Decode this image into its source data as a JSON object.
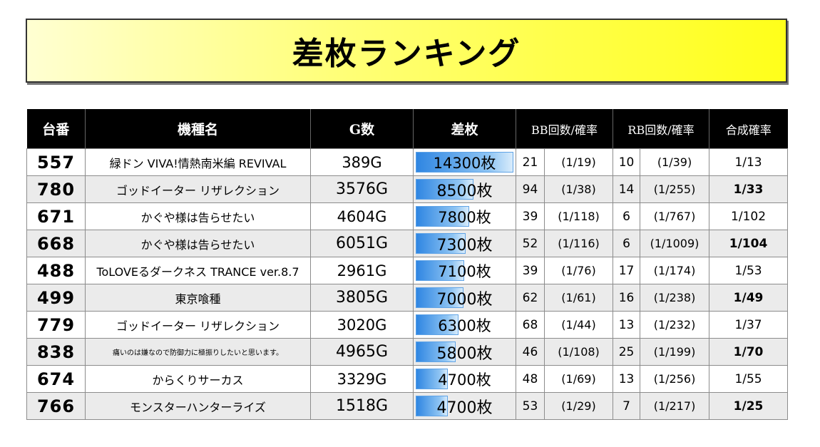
{
  "title": "差枚ランキング",
  "columns": [
    "台番",
    "機種名",
    "G数",
    "差枚",
    "BB回数/確率",
    "RB回数/確率",
    "合成確率"
  ],
  "rows": [
    {
      "num": "557",
      "name": "緑ドン VIVA!情熱南米編 REVIVAL",
      "games": "389G",
      "diff": "14300枚",
      "diff_value": 14300,
      "bb": "21",
      "bb_rate": "(1/19)",
      "rb": "10",
      "rb_rate": "(1/39)",
      "combined": "1/13"
    },
    {
      "num": "780",
      "name": "ゴッドイーター リザレクション",
      "games": "3576G",
      "diff": "8500枚",
      "diff_value": 8500,
      "bb": "94",
      "bb_rate": "(1/38)",
      "rb": "14",
      "rb_rate": "(1/255)",
      "combined": "1/33"
    },
    {
      "num": "671",
      "name": "かぐや様は告らせたい",
      "games": "4604G",
      "diff": "7800枚",
      "diff_value": 7800,
      "bb": "39",
      "bb_rate": "(1/118)",
      "rb": "6",
      "rb_rate": "(1/767)",
      "combined": "1/102"
    },
    {
      "num": "668",
      "name": "かぐや様は告らせたい",
      "games": "6051G",
      "diff": "7300枚",
      "diff_value": 7300,
      "bb": "52",
      "bb_rate": "(1/116)",
      "rb": "6",
      "rb_rate": "(1/1009)",
      "combined": "1/104"
    },
    {
      "num": "488",
      "name": "ToLOVEるダークネス TRANCE ver.8.7",
      "games": "2961G",
      "diff": "7100枚",
      "diff_value": 7100,
      "bb": "39",
      "bb_rate": "(1/76)",
      "rb": "17",
      "rb_rate": "(1/174)",
      "combined": "1/53"
    },
    {
      "num": "499",
      "name": "東京喰種",
      "games": "3805G",
      "diff": "7000枚",
      "diff_value": 7000,
      "bb": "62",
      "bb_rate": "(1/61)",
      "rb": "16",
      "rb_rate": "(1/238)",
      "combined": "1/49"
    },
    {
      "num": "779",
      "name": "ゴッドイーター リザレクション",
      "games": "3020G",
      "diff": "6300枚",
      "diff_value": 6300,
      "bb": "68",
      "bb_rate": "(1/44)",
      "rb": "13",
      "rb_rate": "(1/232)",
      "combined": "1/37"
    },
    {
      "num": "838",
      "name": "痛いのは嫌なので防御力に極振りしたいと思います。",
      "games": "4965G",
      "diff": "5800枚",
      "diff_value": 5800,
      "bb": "46",
      "bb_rate": "(1/108)",
      "rb": "25",
      "rb_rate": "(1/199)",
      "combined": "1/70"
    },
    {
      "num": "674",
      "name": "からくりサーカス",
      "games": "3329G",
      "diff": "4700枚",
      "diff_value": 4700,
      "bb": "48",
      "bb_rate": "(1/69)",
      "rb": "13",
      "rb_rate": "(1/256)",
      "combined": "1/55"
    },
    {
      "num": "766",
      "name": "モンスターハンターライズ",
      "games": "1518G",
      "diff": "4700枚",
      "diff_value": 4700,
      "bb": "53",
      "bb_rate": "(1/29)",
      "rb": "7",
      "rb_rate": "(1/217)",
      "combined": "1/25"
    }
  ]
}
